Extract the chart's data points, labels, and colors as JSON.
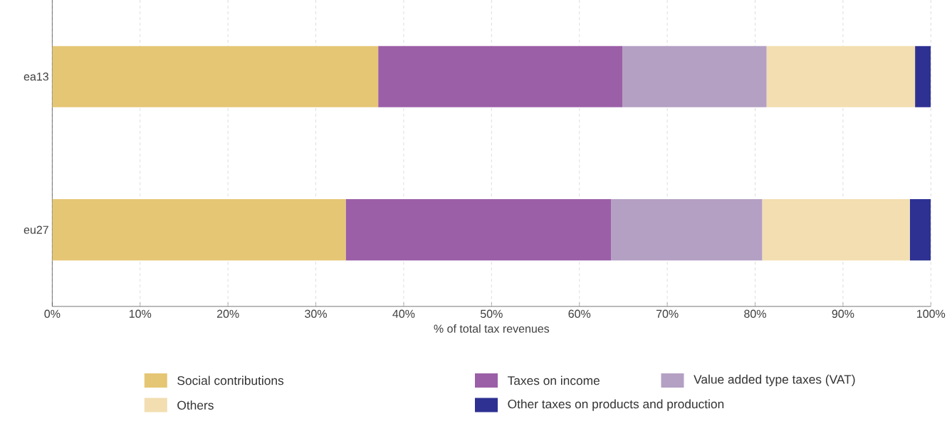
{
  "chart_data": {
    "type": "bar",
    "orientation": "horizontal",
    "stacked": true,
    "categories": [
      "ea13",
      "eu27"
    ],
    "xlabel": "% of total tax revenues",
    "xlim": [
      0,
      100
    ],
    "xticks": [
      {
        "value": 0,
        "label": "0%"
      },
      {
        "value": 10,
        "label": "10%"
      },
      {
        "value": 20,
        "label": "20%"
      },
      {
        "value": 30,
        "label": "30%"
      },
      {
        "value": 40,
        "label": "40%"
      },
      {
        "value": 50,
        "label": "50%"
      },
      {
        "value": 60,
        "label": "60%"
      },
      {
        "value": 70,
        "label": "70%"
      },
      {
        "value": 80,
        "label": "80%"
      },
      {
        "value": 90,
        "label": "90%"
      },
      {
        "value": 100,
        "label": "100%"
      }
    ],
    "grid": "x",
    "line_style": "dashed",
    "legend": "bottom",
    "series": [
      {
        "name": "Social contributions",
        "color": "#e5c675",
        "values": [
          37.1,
          33.4
        ]
      },
      {
        "name": "Taxes on income",
        "color": "#9b5fa7",
        "values": [
          27.8,
          30.2
        ]
      },
      {
        "name": "Value added type taxes (VAT)",
        "color": "#b4a0c3",
        "values": [
          16.4,
          17.2
        ]
      },
      {
        "name": "Others",
        "color": "#f2deb1",
        "values": [
          16.9,
          16.8
        ]
      },
      {
        "name": "Other taxes on products and production",
        "color": "#2e3192",
        "values": [
          1.8,
          2.4
        ]
      }
    ]
  }
}
